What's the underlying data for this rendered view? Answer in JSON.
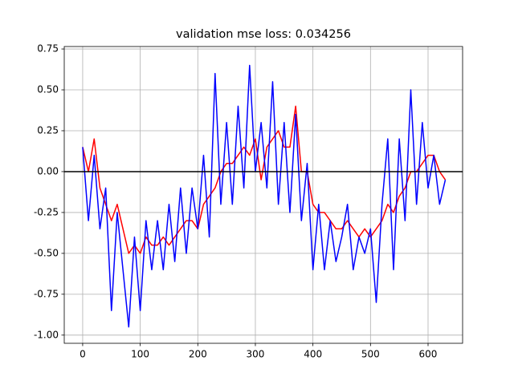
{
  "chart_data": {
    "type": "line",
    "title": "validation mse loss: 0.034256",
    "x": [
      0,
      10,
      20,
      30,
      40,
      50,
      60,
      70,
      80,
      90,
      100,
      110,
      120,
      130,
      140,
      150,
      160,
      170,
      180,
      190,
      200,
      210,
      220,
      230,
      240,
      250,
      260,
      270,
      280,
      290,
      300,
      310,
      320,
      330,
      340,
      350,
      360,
      370,
      380,
      390,
      400,
      410,
      420,
      430,
      440,
      450,
      460,
      470,
      480,
      490,
      500,
      510,
      520,
      530,
      540,
      550,
      560,
      570,
      580,
      590,
      600,
      610,
      620,
      630
    ],
    "series": [
      {
        "color": "#ff0000",
        "values": [
          0.15,
          0.0,
          0.2,
          -0.1,
          -0.2,
          -0.3,
          -0.2,
          -0.35,
          -0.5,
          -0.45,
          -0.5,
          -0.4,
          -0.45,
          -0.45,
          -0.4,
          -0.45,
          -0.4,
          -0.35,
          -0.3,
          -0.3,
          -0.35,
          -0.2,
          -0.15,
          -0.1,
          0.0,
          0.05,
          0.05,
          0.1,
          0.15,
          0.1,
          0.2,
          -0.05,
          0.15,
          0.2,
          0.25,
          0.15,
          0.15,
          0.4,
          0.0,
          0.0,
          -0.2,
          -0.25,
          -0.25,
          -0.3,
          -0.35,
          -0.35,
          -0.3,
          -0.35,
          -0.4,
          -0.35,
          -0.4,
          -0.35,
          -0.3,
          -0.2,
          -0.25,
          -0.15,
          -0.1,
          0.0,
          0.0,
          0.05,
          0.1,
          0.1,
          0.0,
          -0.05
        ]
      },
      {
        "color": "#0000ff",
        "values": [
          0.15,
          -0.3,
          0.1,
          -0.35,
          -0.1,
          -0.85,
          -0.25,
          -0.6,
          -0.95,
          -0.4,
          -0.85,
          -0.3,
          -0.6,
          -0.3,
          -0.6,
          -0.2,
          -0.55,
          -0.1,
          -0.5,
          -0.1,
          -0.35,
          0.1,
          -0.4,
          0.6,
          -0.2,
          0.3,
          -0.2,
          0.4,
          -0.1,
          0.65,
          0.0,
          0.3,
          -0.1,
          0.55,
          -0.2,
          0.3,
          -0.25,
          0.35,
          -0.3,
          0.05,
          -0.6,
          -0.2,
          -0.6,
          -0.3,
          -0.55,
          -0.4,
          -0.2,
          -0.6,
          -0.4,
          -0.5,
          -0.35,
          -0.8,
          -0.2,
          0.2,
          -0.6,
          0.2,
          -0.3,
          0.5,
          -0.2,
          0.3,
          -0.1,
          0.1,
          -0.2,
          -0.05
        ]
      }
    ],
    "reference_line": 0,
    "reference_color": "#000000",
    "xlim": [
      -32,
      660
    ],
    "ylim": [
      -1.05,
      0.765
    ],
    "xticks": [
      0,
      100,
      200,
      300,
      400,
      500,
      600
    ],
    "yticks": [
      {
        "value": -1.0,
        "label": "-1.00"
      },
      -0.75,
      {
        "value": -0.5,
        "label": "-0.50"
      },
      -0.25,
      {
        "value": 0,
        "label": "0.00"
      },
      0.25,
      {
        "value": 0.5,
        "label": "0.50"
      },
      0.75
    ],
    "grid": true
  }
}
